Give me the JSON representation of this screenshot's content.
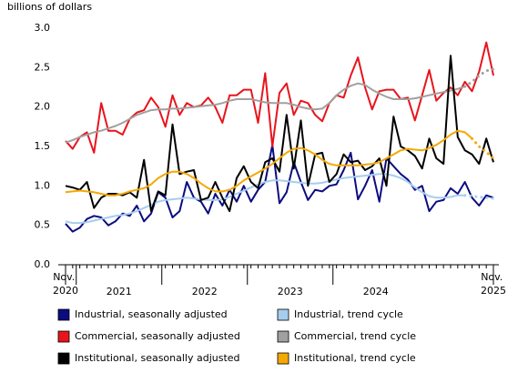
{
  "chart_data": {
    "type": "line",
    "y_label": "billions of dollars",
    "ylim": [
      0,
      3
    ],
    "yticks": [
      {
        "value": 0,
        "label": "0.0"
      },
      0.5,
      {
        "value": 1,
        "label": "1.0"
      },
      1.5,
      {
        "value": 2,
        "label": "2.0"
      },
      2.5,
      {
        "value": 3,
        "label": "3.0"
      }
    ],
    "grid": false,
    "categories": [
      "Nov. 2020",
      null,
      null,
      null,
      null,
      null,
      null,
      "2021",
      null,
      null,
      null,
      null,
      null,
      null,
      null,
      null,
      null,
      null,
      null,
      "2022",
      null,
      null,
      null,
      null,
      null,
      null,
      null,
      null,
      null,
      null,
      null,
      "2023",
      null,
      null,
      null,
      null,
      null,
      null,
      null,
      null,
      null,
      null,
      null,
      "2024",
      null,
      null,
      null,
      null,
      null,
      null,
      null,
      null,
      null,
      null,
      null,
      null,
      null,
      null,
      null,
      null,
      "Nov. 2025"
    ],
    "series": [
      {
        "name": "Industrial, seasonally adjusted",
        "color": "#0c0c80",
        "values": [
          0.52,
          0.42,
          0.47,
          0.58,
          0.62,
          0.6,
          0.5,
          0.55,
          0.65,
          0.62,
          0.75,
          0.55,
          0.65,
          0.92,
          0.85,
          0.6,
          0.68,
          1.05,
          0.85,
          0.8,
          0.65,
          0.9,
          0.75,
          0.95,
          0.8,
          1.0,
          0.8,
          0.95,
          1.05,
          1.52,
          0.78,
          0.92,
          1.3,
          1.05,
          0.82,
          0.95,
          0.93,
          1.0,
          1.02,
          1.2,
          1.42,
          0.83,
          1.0,
          1.2,
          0.8,
          1.35,
          1.25,
          1.15,
          1.08,
          0.95,
          1.0,
          0.68,
          0.8,
          0.82,
          0.97,
          0.9,
          1.05,
          0.85,
          0.75,
          0.88,
          0.85
        ]
      },
      {
        "name": "Industrial, trend cycle",
        "color": "#a6cdef",
        "dotted_from": 56,
        "values": [
          0.55,
          0.53,
          0.53,
          0.54,
          0.56,
          0.58,
          0.6,
          0.62,
          0.63,
          0.65,
          0.68,
          0.72,
          0.76,
          0.8,
          0.82,
          0.83,
          0.84,
          0.85,
          0.84,
          0.83,
          0.82,
          0.82,
          0.83,
          0.86,
          0.9,
          0.94,
          0.98,
          1.02,
          1.05,
          1.07,
          1.07,
          1.06,
          1.05,
          1.04,
          1.03,
          1.03,
          1.04,
          1.06,
          1.08,
          1.1,
          1.11,
          1.12,
          1.13,
          1.14,
          1.15,
          1.15,
          1.13,
          1.1,
          1.05,
          0.98,
          0.92,
          0.87,
          0.85,
          0.85,
          0.86,
          0.88,
          0.88,
          0.87,
          0.86,
          0.85,
          0.84
        ]
      },
      {
        "name": "Commercial, seasonally adjusted",
        "color": "#e8141c",
        "values": [
          1.57,
          1.47,
          1.62,
          1.68,
          1.42,
          2.05,
          1.7,
          1.7,
          1.65,
          1.85,
          1.93,
          1.96,
          2.12,
          2.0,
          1.75,
          2.15,
          1.9,
          2.05,
          2.0,
          2.02,
          2.12,
          2.0,
          1.8,
          2.15,
          2.15,
          2.22,
          2.22,
          1.8,
          2.43,
          1.5,
          2.18,
          2.3,
          1.9,
          2.08,
          2.05,
          1.9,
          1.82,
          2.05,
          2.15,
          2.12,
          2.4,
          2.63,
          2.25,
          1.97,
          2.2,
          2.22,
          2.22,
          2.1,
          2.12,
          1.83,
          2.15,
          2.47,
          2.08,
          2.18,
          2.25,
          2.15,
          2.32,
          2.2,
          2.45,
          2.82,
          2.4
        ]
      },
      {
        "name": "Commercial, trend cycle",
        "color": "#a0a0a0",
        "dotted_from": 56,
        "values": [
          1.55,
          1.58,
          1.62,
          1.65,
          1.68,
          1.7,
          1.73,
          1.76,
          1.8,
          1.85,
          1.9,
          1.93,
          1.96,
          1.97,
          1.97,
          1.98,
          1.98,
          1.99,
          2.0,
          2.01,
          2.02,
          2.03,
          2.05,
          2.08,
          2.1,
          2.1,
          2.1,
          2.08,
          2.06,
          2.05,
          2.05,
          2.05,
          2.03,
          2.0,
          1.98,
          1.97,
          1.98,
          2.05,
          2.15,
          2.22,
          2.27,
          2.3,
          2.28,
          2.22,
          2.17,
          2.13,
          2.1,
          2.1,
          2.1,
          2.11,
          2.13,
          2.15,
          2.17,
          2.19,
          2.21,
          2.23,
          2.26,
          2.32,
          2.4,
          2.46,
          2.48
        ]
      },
      {
        "name": "Institutional, seasonally adjusted",
        "color": "#000000",
        "values": [
          1.0,
          0.98,
          0.95,
          1.05,
          0.72,
          0.85,
          0.9,
          0.9,
          0.88,
          0.92,
          0.85,
          1.33,
          0.68,
          0.93,
          0.88,
          1.78,
          1.15,
          1.18,
          1.2,
          0.82,
          0.85,
          1.05,
          0.85,
          0.68,
          1.1,
          1.25,
          1.05,
          0.97,
          1.3,
          1.35,
          1.18,
          1.9,
          1.22,
          1.83,
          1.0,
          1.4,
          1.42,
          1.05,
          1.15,
          1.4,
          1.3,
          1.32,
          1.2,
          1.25,
          1.35,
          1.0,
          1.88,
          1.5,
          1.45,
          1.38,
          1.22,
          1.6,
          1.35,
          1.28,
          2.65,
          1.62,
          1.45,
          1.4,
          1.28,
          1.6,
          1.3
        ]
      },
      {
        "name": "Institutional, trend cycle",
        "color": "#f5a800",
        "dotted_from": 57,
        "values": [
          0.92,
          0.93,
          0.94,
          0.93,
          0.92,
          0.9,
          0.88,
          0.88,
          0.9,
          0.93,
          0.95,
          0.97,
          1.02,
          1.1,
          1.15,
          1.18,
          1.18,
          1.15,
          1.1,
          1.03,
          0.97,
          0.93,
          0.93,
          0.95,
          1.0,
          1.07,
          1.12,
          1.17,
          1.22,
          1.28,
          1.35,
          1.42,
          1.47,
          1.48,
          1.45,
          1.4,
          1.33,
          1.28,
          1.26,
          1.26,
          1.26,
          1.26,
          1.27,
          1.28,
          1.3,
          1.35,
          1.4,
          1.45,
          1.47,
          1.46,
          1.45,
          1.48,
          1.52,
          1.58,
          1.65,
          1.7,
          1.68,
          1.6,
          1.5,
          1.43,
          1.35
        ]
      }
    ]
  }
}
